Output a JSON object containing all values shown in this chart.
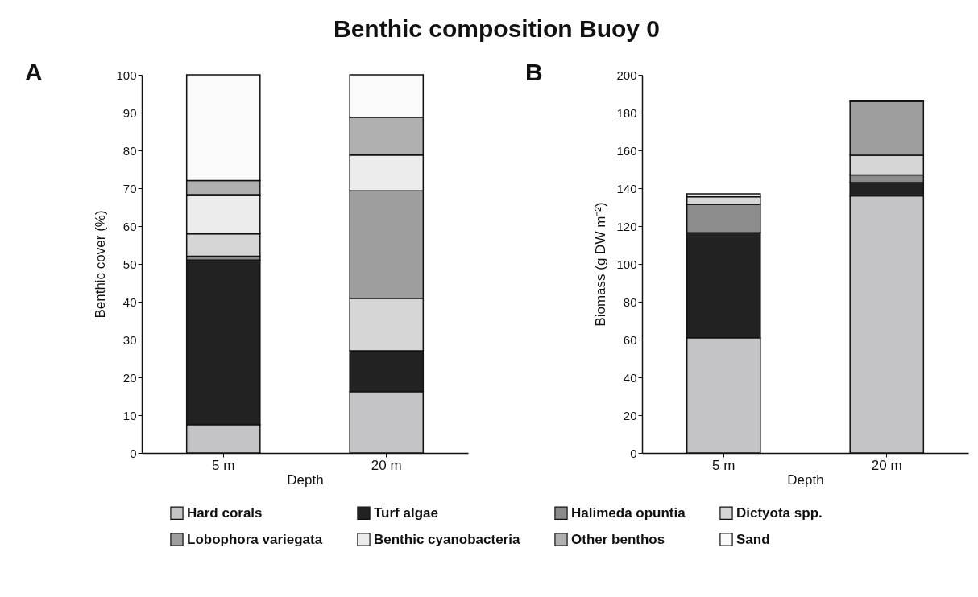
{
  "chart_data": [
    {
      "type": "bar",
      "title": "Benthic composition Buoy 0",
      "annotations": [
        "A"
      ],
      "xlabel": "Depth",
      "ylabel": "Benthic cover (%)",
      "categories": [
        "5 m",
        "20 m"
      ],
      "stacked": true,
      "ylim": [
        0,
        100
      ],
      "yticks": [
        0,
        10,
        20,
        30,
        40,
        50,
        60,
        70,
        80,
        90,
        100
      ],
      "legend": "bottom",
      "series": [
        {
          "name": "Hard corals",
          "color": "#c4c4c6",
          "values": [
            7.5,
            16.2
          ]
        },
        {
          "name": "Turf algae",
          "color": "#222222",
          "values": [
            43.5,
            10.8
          ]
        },
        {
          "name": "Halimeda opuntia",
          "color": "#8c8c8c",
          "values": [
            1,
            0
          ]
        },
        {
          "name": "Dictyota spp.",
          "color": "#d6d6d6",
          "values": [
            6,
            13.9
          ]
        },
        {
          "name": "Lobophora variegata",
          "color": "#9e9e9e",
          "values": [
            0,
            28.4
          ]
        },
        {
          "name": "Benthic cyanobacteria",
          "color": "#ececec",
          "values": [
            10.3,
            9.5
          ]
        },
        {
          "name": "Other benthos",
          "color": "#b0b0b0",
          "values": [
            3.7,
            10
          ]
        },
        {
          "name": "Sand",
          "color": "#fafafa",
          "values": [
            28,
            11.2
          ]
        }
      ]
    },
    {
      "type": "bar",
      "annotations": [
        "B"
      ],
      "xlabel": "Depth",
      "ylabel": "Biomass (g DW m⁻²)",
      "categories": [
        "5 m",
        "20 m"
      ],
      "stacked": true,
      "ylim": [
        0,
        200
      ],
      "yticks": [
        0,
        20,
        40,
        60,
        80,
        100,
        120,
        140,
        160,
        180,
        200
      ],
      "legend": "bottom",
      "series": [
        {
          "name": "Hard corals",
          "color": "#c4c4c6",
          "values": [
            61,
            136
          ]
        },
        {
          "name": "Turf algae",
          "color": "#222222",
          "values": [
            55.5,
            7
          ]
        },
        {
          "name": "Halimeda opuntia",
          "color": "#8c8c8c",
          "values": [
            15,
            4
          ]
        },
        {
          "name": "Dictyota spp.",
          "color": "#d6d6d6",
          "values": [
            4,
            10.5
          ]
        },
        {
          "name": "Lobophora variegata",
          "color": "#9e9e9e",
          "values": [
            0,
            28.5
          ]
        },
        {
          "name": "Benthic cyanobacteria",
          "color": "#ececec",
          "values": [
            1.5,
            0.5
          ]
        }
      ]
    }
  ]
}
